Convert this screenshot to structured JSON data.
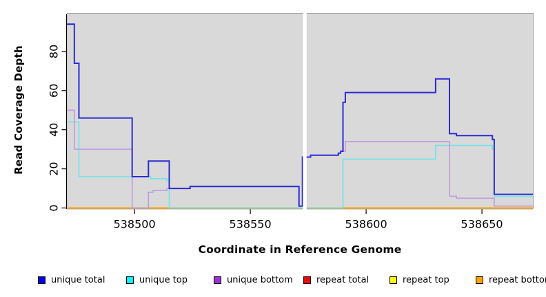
{
  "figure": {
    "background_color": "#ffffff",
    "plot_background_color": "#d9d9d9",
    "gap_band_color": "#ffffff"
  },
  "chart_data": {
    "type": "line",
    "subtype": "step-coverage",
    "title": "",
    "xlabel": "Coordinate in Reference Genome",
    "ylabel": "Read Coverage Depth",
    "xlim": [
      538470.8,
      538672.0
    ],
    "ylim": [
      0,
      99.3
    ],
    "x_ticks": [
      538500,
      538550,
      538600,
      538650
    ],
    "y_ticks": [
      0,
      20,
      40,
      60,
      80
    ],
    "grid": false,
    "legend_position": "bottom",
    "coverage_gap": {
      "from": 538572.7,
      "to": 538574.3,
      "note": "white band, missing data"
    },
    "series": [
      {
        "name": "unique total",
        "color": "#2b2bd5",
        "legend_color": "#0000ee",
        "width": 2,
        "steps": [
          [
            538470.8,
            94
          ],
          [
            538474,
            74
          ],
          [
            538476,
            46
          ],
          [
            538499,
            16
          ],
          [
            538506,
            24
          ],
          [
            538515,
            10
          ],
          [
            538524,
            11
          ],
          [
            538571,
            1
          ],
          [
            538572.5,
            26
          ],
          [
            538576,
            27
          ],
          [
            538588,
            28
          ],
          [
            538589,
            29
          ],
          [
            538590,
            54
          ],
          [
            538591,
            59
          ],
          [
            538630,
            66
          ],
          [
            538636,
            38
          ],
          [
            538639,
            37
          ],
          [
            538654.5,
            35
          ],
          [
            538655.3,
            7
          ]
        ]
      },
      {
        "name": "unique top",
        "color": "#6fe3e9",
        "legend_color": "#00ffff",
        "width": 1.6,
        "steps": [
          [
            538470.8,
            44
          ],
          [
            538476,
            16
          ],
          [
            538507,
            15
          ],
          [
            538514,
            14
          ],
          [
            538515,
            0
          ],
          [
            538590,
            25
          ],
          [
            538630,
            32
          ],
          [
            538654.5,
            30
          ],
          [
            538655.3,
            6
          ]
        ]
      },
      {
        "name": "unique bottom",
        "color": "#c09adf",
        "legend_color": "#9932cc",
        "width": 1.6,
        "steps": [
          [
            538470.8,
            50
          ],
          [
            538474,
            30
          ],
          [
            538499,
            0
          ],
          [
            538506,
            8
          ],
          [
            538508,
            9
          ],
          [
            538514,
            10
          ],
          [
            538524,
            11
          ],
          [
            538571,
            1
          ],
          [
            538572.5,
            26
          ],
          [
            538576,
            27
          ],
          [
            538588,
            28
          ],
          [
            538589,
            29
          ],
          [
            538591,
            34
          ],
          [
            538636,
            6
          ],
          [
            538639,
            5
          ],
          [
            538655.3,
            1
          ]
        ]
      },
      {
        "name": "repeat total",
        "color": "#e00000",
        "legend_color": "#ff0000",
        "width": 1.6,
        "steps": [
          [
            538470.8,
            0
          ]
        ]
      },
      {
        "name": "repeat top",
        "color": "#ffff00",
        "legend_color": "#ffff00",
        "width": 1.6,
        "steps": [
          [
            538470.8,
            0
          ]
        ]
      },
      {
        "name": "repeat bottom",
        "color": "#ffa500",
        "legend_color": "#ffa500",
        "width": 2,
        "steps": [
          [
            538470.8,
            0
          ]
        ]
      }
    ],
    "legend": [
      {
        "label": "unique total",
        "color": "#0000ee"
      },
      {
        "label": "unique top",
        "color": "#00ffff"
      },
      {
        "label": "unique bottom",
        "color": "#9932cc"
      },
      {
        "label": "repeat total",
        "color": "#ff0000"
      },
      {
        "label": "repeat top",
        "color": "#ffff00"
      },
      {
        "label": "repeat bottom",
        "color": "#ffa500"
      }
    ]
  }
}
